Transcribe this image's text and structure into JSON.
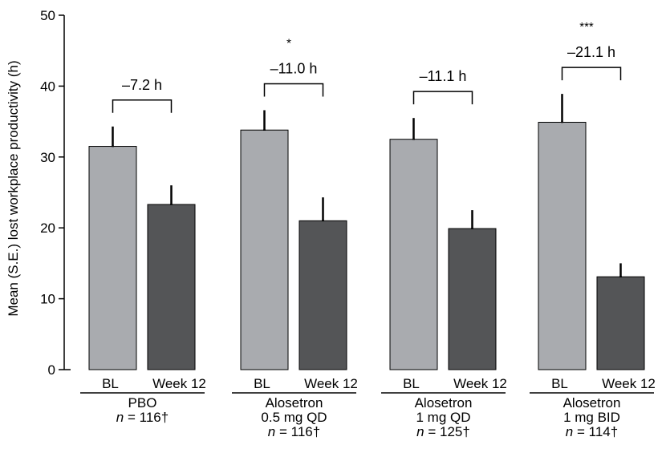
{
  "chart_data": {
    "type": "bar",
    "ylabel": "Mean (S.E.) lost workplace productivity (h)",
    "ylim": [
      0,
      50
    ],
    "yticks": [
      "0",
      "10",
      "20",
      "30",
      "40",
      "50"
    ],
    "bar_labels": [
      "BL",
      "Week 12"
    ],
    "colors": {
      "BL": "#a9abaf",
      "Week 12": "#545557"
    },
    "groups": [
      {
        "name_lines": [
          "PBO"
        ],
        "n_prefix": "n",
        "n_value": " = 116†",
        "values": [
          31.5,
          23.3
        ],
        "errors": [
          2.8,
          2.7
        ],
        "difference": "–7.2 h",
        "significance": ""
      },
      {
        "name_lines": [
          "Alosetron",
          "0.5 mg QD"
        ],
        "n_prefix": "n",
        "n_value": " = 116†",
        "values": [
          33.8,
          21.0
        ],
        "errors": [
          2.8,
          3.3
        ],
        "difference": "–11.0 h",
        "significance": "*"
      },
      {
        "name_lines": [
          "Alosetron",
          "1 mg QD"
        ],
        "n_prefix": "n",
        "n_value": " = 125†",
        "values": [
          32.5,
          19.9
        ],
        "errors": [
          3.0,
          2.6
        ],
        "difference": "–11.1 h",
        "significance": ""
      },
      {
        "name_lines": [
          "Alosetron",
          "1 mg BID"
        ],
        "n_prefix": "n",
        "n_value": " = 114†",
        "values": [
          34.9,
          13.1
        ],
        "errors": [
          4.0,
          1.9
        ],
        "difference": "–21.1 h",
        "significance": "***"
      }
    ]
  }
}
